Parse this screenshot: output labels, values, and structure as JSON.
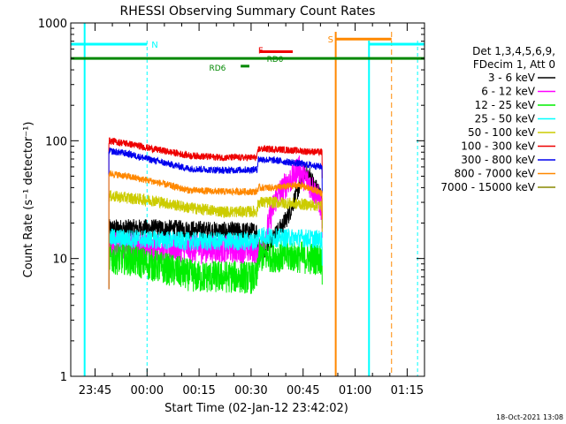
{
  "chart_data": {
    "type": "line",
    "title": "RHESSI Observing Summary Count Rates",
    "ylabel": "Count Rate (s⁻¹ detector⁻¹)",
    "xlabel": "Start Time (02-Jan-12 23:42:02)",
    "y_scale": "log",
    "ylim": [
      1,
      1000
    ],
    "y_ticks": [
      {
        "value": 1,
        "label": "1"
      },
      {
        "value": 10,
        "label": "10"
      },
      {
        "value": 100,
        "label": "100"
      },
      {
        "value": 1000,
        "label": "1000"
      }
    ],
    "x_unit": "minutes after 23:42:02",
    "xlim": [
      -4,
      98
    ],
    "x_ticks": [
      {
        "value": 3,
        "label": "23:45"
      },
      {
        "value": 18,
        "label": "00:00"
      },
      {
        "value": 33,
        "label": "00:15"
      },
      {
        "value": 48,
        "label": "00:30"
      },
      {
        "value": 63,
        "label": "00:45"
      },
      {
        "value": 78,
        "label": "01:00"
      },
      {
        "value": 93,
        "label": "01:15"
      }
    ],
    "legend": {
      "placement": "right",
      "header": [
        "Det 1,3,4,5,6,9,",
        "FDecim 1, Att 0"
      ],
      "entries": [
        {
          "label": "3 - 6 keV",
          "color": "#000000"
        },
        {
          "label": "6 - 12 keV",
          "color": "#ff00ff"
        },
        {
          "label": "12 - 25 keV",
          "color": "#00ee00"
        },
        {
          "label": "25 - 50 keV",
          "color": "#00ffff"
        },
        {
          "label": "50 - 100 keV",
          "color": "#cccc00"
        },
        {
          "label": "100 - 300 keV",
          "color": "#ee0000"
        },
        {
          "label": "300 - 800 keV",
          "color": "#0000ee"
        },
        {
          "label": "800 - 7000 keV",
          "color": "#ff8800"
        },
        {
          "label": "7000 - 15000 keV",
          "color": "#888800"
        }
      ]
    },
    "series": [
      {
        "name": "3 - 6 keV",
        "color": "#000000",
        "points": [
          [
            7,
            18
          ],
          [
            20,
            18
          ],
          [
            32,
            17.5
          ],
          [
            42,
            17
          ],
          [
            48,
            17
          ],
          [
            49.7,
            17
          ],
          [
            50.1,
            13
          ],
          [
            52,
            12
          ],
          [
            53,
            14
          ],
          [
            55,
            16
          ],
          [
            57,
            19
          ],
          [
            59,
            24
          ],
          [
            61,
            35
          ],
          [
            62.5,
            45
          ],
          [
            63.5,
            55
          ],
          [
            65,
            50
          ],
          [
            66.5,
            40
          ],
          [
            67.5,
            38
          ],
          [
            68.5,
            30
          ]
        ]
      },
      {
        "name": "6 - 12 keV",
        "color": "#ff00ff",
        "points": [
          [
            7,
            13
          ],
          [
            20,
            12.5
          ],
          [
            32,
            12
          ],
          [
            42,
            12
          ],
          [
            49.7,
            11.8
          ],
          [
            50.1,
            11
          ],
          [
            52,
            15
          ],
          [
            54,
            25
          ],
          [
            55.5,
            35
          ],
          [
            57,
            38
          ],
          [
            58.5,
            45
          ],
          [
            60,
            48
          ],
          [
            61.5,
            60
          ],
          [
            63,
            50
          ],
          [
            64.5,
            45
          ],
          [
            66,
            38
          ],
          [
            67.5,
            32
          ],
          [
            68.5,
            25
          ]
        ]
      },
      {
        "name": "12 - 25 keV",
        "color": "#00ee00",
        "points": [
          [
            7,
            10
          ],
          [
            12,
            10
          ],
          [
            18,
            9
          ],
          [
            25,
            8
          ],
          [
            32,
            7
          ],
          [
            40,
            7
          ],
          [
            45,
            7
          ],
          [
            49.7,
            6.8
          ],
          [
            50.1,
            10.5
          ],
          [
            55,
            10.5
          ],
          [
            60,
            10.5
          ],
          [
            65,
            10
          ],
          [
            68.5,
            10
          ]
        ]
      },
      {
        "name": "25 - 50 keV",
        "color": "#00ffff",
        "points": [
          [
            7,
            15
          ],
          [
            20,
            14.5
          ],
          [
            30,
            14
          ],
          [
            40,
            14
          ],
          [
            49.7,
            14
          ],
          [
            50.1,
            16
          ],
          [
            55,
            15
          ],
          [
            62,
            15
          ],
          [
            68.5,
            14.5
          ]
        ]
      },
      {
        "name": "50 - 100 keV",
        "color": "#cccc00",
        "points": [
          [
            7,
            34
          ],
          [
            20,
            31
          ],
          [
            30,
            27
          ],
          [
            40,
            25
          ],
          [
            45,
            25
          ],
          [
            49.7,
            25
          ],
          [
            50.1,
            30
          ],
          [
            55,
            30
          ],
          [
            62,
            29
          ],
          [
            68.5,
            28
          ]
        ]
      },
      {
        "name": "100 - 300 keV",
        "color": "#ee0000",
        "points": [
          [
            7,
            100
          ],
          [
            12,
            95
          ],
          [
            20,
            85
          ],
          [
            30,
            75
          ],
          [
            40,
            72
          ],
          [
            49.7,
            72
          ],
          [
            50.1,
            85
          ],
          [
            55,
            85
          ],
          [
            62,
            82
          ],
          [
            68.5,
            80
          ]
        ]
      },
      {
        "name": "300 - 800 keV",
        "color": "#0000ee",
        "points": [
          [
            7,
            82
          ],
          [
            12,
            78
          ],
          [
            20,
            68
          ],
          [
            30,
            58
          ],
          [
            40,
            56
          ],
          [
            49.7,
            57
          ],
          [
            50.1,
            70
          ],
          [
            55,
            68
          ],
          [
            62,
            64
          ],
          [
            68.5,
            60
          ]
        ]
      },
      {
        "name": "800 - 7000 keV",
        "color": "#ff8800",
        "points": [
          [
            7,
            53
          ],
          [
            12,
            50
          ],
          [
            20,
            45
          ],
          [
            30,
            38
          ],
          [
            40,
            37
          ],
          [
            49.7,
            37
          ],
          [
            50.1,
            40
          ],
          [
            55,
            40
          ],
          [
            62,
            42
          ],
          [
            68.5,
            36
          ]
        ]
      }
    ],
    "annotations": [
      {
        "label": "N",
        "color": "#00ffff",
        "x": 18,
        "y": 660
      },
      {
        "label": "S",
        "color": "#ff8800",
        "x": 72.5,
        "y": 730
      },
      {
        "label": "F",
        "color": "#ee0000",
        "x": 48.5,
        "y": 570
      },
      {
        "label": "RD0",
        "color": "#008800",
        "x": 52,
        "y": 500
      },
      {
        "label": "RD6",
        "color": "#008800",
        "x": 41.5,
        "y": 420
      }
    ],
    "timestamp": "18-Oct-2021 13:08"
  }
}
